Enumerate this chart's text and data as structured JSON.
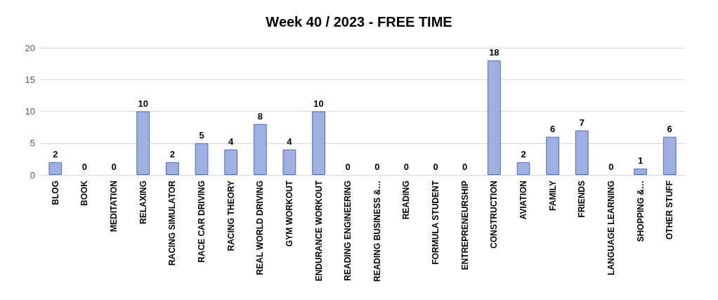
{
  "chart_data": {
    "type": "bar",
    "title": "Week 40 / 2023 - FREE TIME",
    "categories": [
      "BLOG",
      "BOOK",
      "MEDITATION",
      "RELAXING",
      "RACING SIMULATOR",
      "RACE CAR DRIVING",
      "RACING THEORY",
      "REAL WORLD DRIVING",
      "GYM WORKOUT",
      "ENDURANCE WORKOUT",
      "READING ENGINEERING",
      "READING BUSINESS &…",
      "READING",
      "FORMULA STUDENT",
      "ENTREPRENEURSHIP",
      "CONSTRUCTION",
      "AVIATION",
      "FAMILY",
      "FRIENDS",
      "LANGUAGE LEARNING",
      "SHOPPING &…",
      "OTHER STUFF"
    ],
    "values": [
      2,
      0,
      0,
      10,
      2,
      5,
      4,
      8,
      4,
      10,
      0,
      0,
      0,
      0,
      0,
      18,
      2,
      6,
      7,
      0,
      1,
      6
    ],
    "color": "#9fb0e0",
    "ylim": [
      0,
      20
    ],
    "yticks": [
      0,
      5,
      10,
      15,
      20
    ],
    "grid": "y",
    "data_labels": true
  }
}
